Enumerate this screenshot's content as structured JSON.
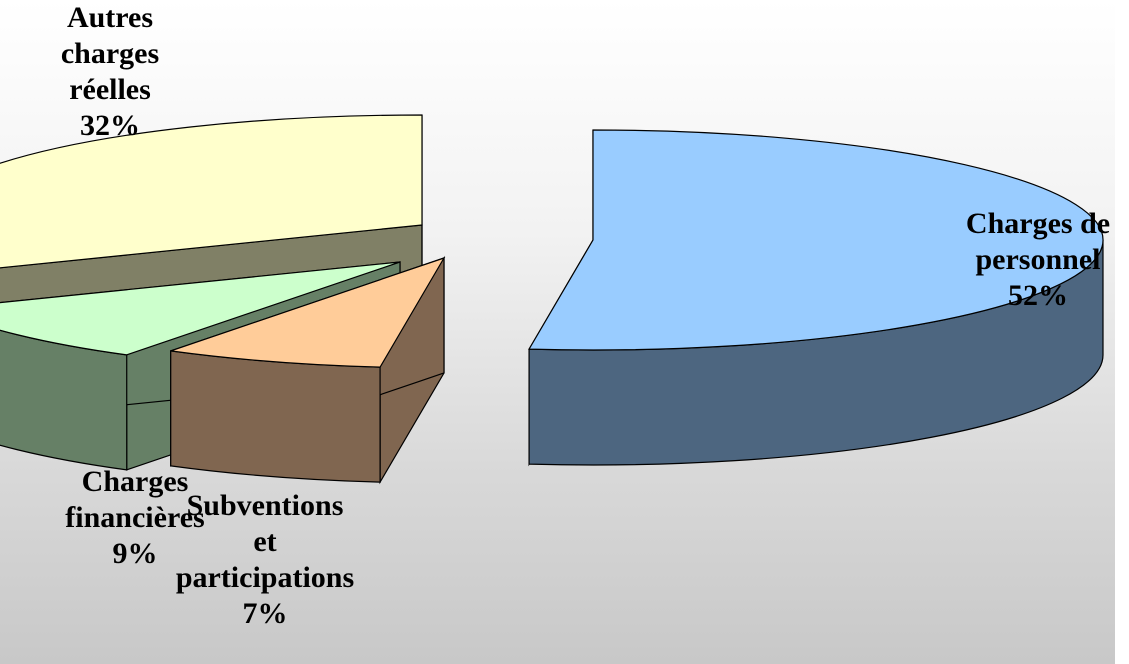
{
  "chart_data": {
    "type": "pie",
    "style": "3d-exploded",
    "slices": [
      {
        "name": "Charges de personnel",
        "label_lines": [
          "Charges de",
          "personnel"
        ],
        "value": 52,
        "pct_label": "52%",
        "top_color": "#99ccff",
        "side_color": "#4d6680"
      },
      {
        "name": "Subventions et participations",
        "label_lines": [
          "Subventions",
          "et",
          "participations"
        ],
        "value": 7,
        "pct_label": "7%",
        "top_color": "#ffcc99",
        "side_color": "#806650"
      },
      {
        "name": "Charges financières",
        "label_lines": [
          "Charges",
          "financières"
        ],
        "value": 9,
        "pct_label": "9%",
        "top_color": "#ccffcc",
        "side_color": "#668066"
      },
      {
        "name": "Autres charges réelles",
        "label_lines": [
          "Autres",
          "charges",
          "réelles"
        ],
        "value": 32,
        "pct_label": "32%",
        "top_color": "#ffffcc",
        "side_color": "#808066"
      }
    ]
  }
}
